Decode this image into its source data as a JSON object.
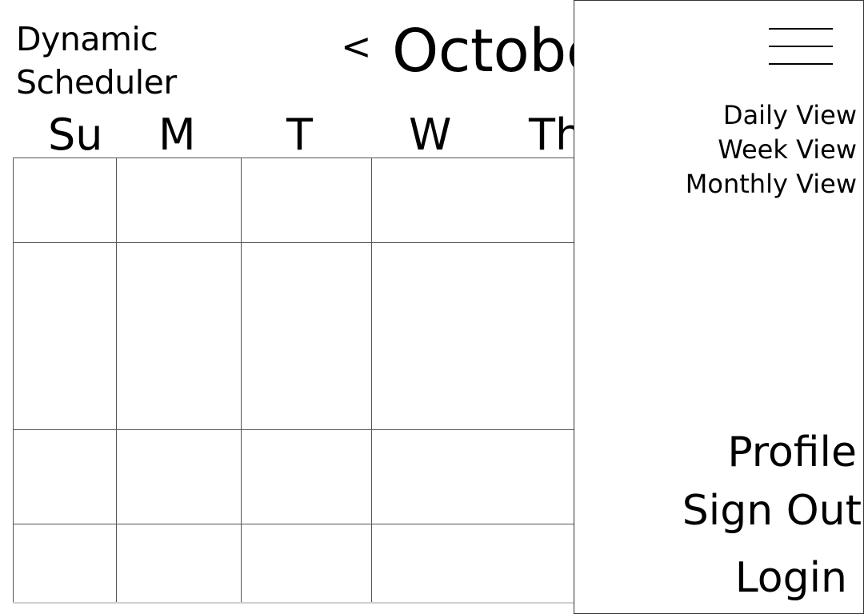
{
  "app": {
    "title_line1": "Dynamic",
    "title_line2": "Scheduler"
  },
  "calendar": {
    "prev_label": "<",
    "month_label": "Octobe",
    "weekdays": [
      "Su",
      "M",
      "T",
      "W",
      "Th"
    ]
  },
  "menu": {
    "hamburger_icon": "hamburger-icon",
    "views": [
      "Daily View",
      "Week View",
      "Monthly View"
    ],
    "account": [
      "Profile",
      "Sign Out",
      "Login"
    ]
  }
}
